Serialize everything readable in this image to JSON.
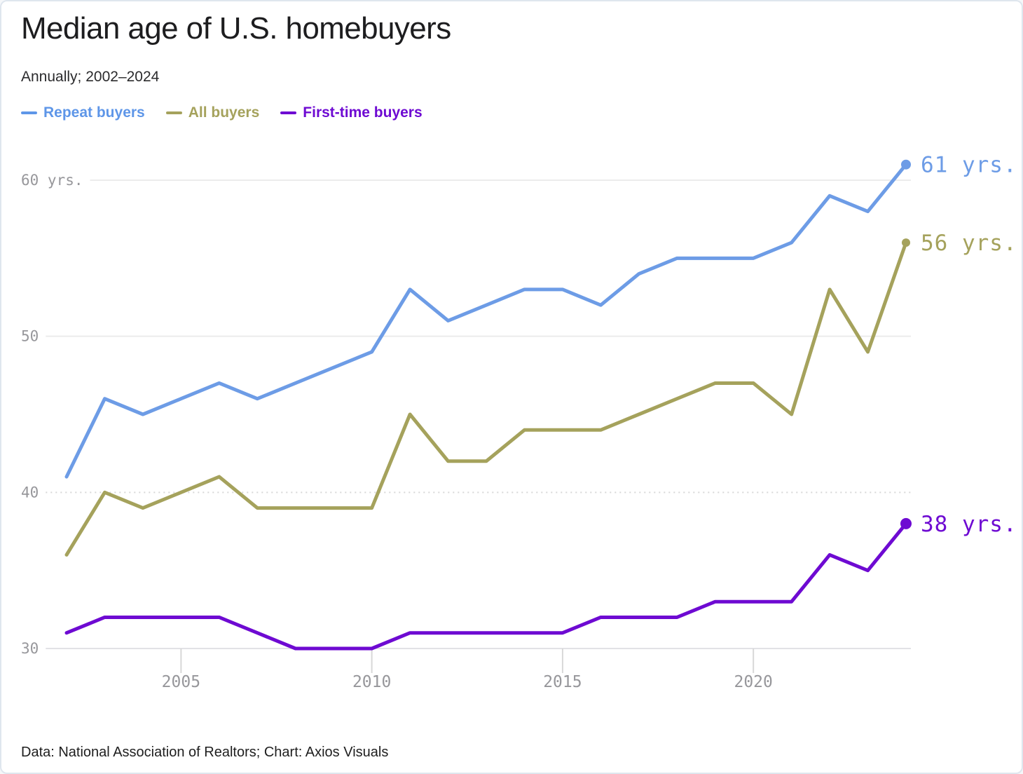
{
  "title": "Median age of U.S. homebuyers",
  "subtitle": "Annually; 2002–2024",
  "footer": "Data: National Association of Realtors; Chart: Axios Visuals",
  "legend": [
    {
      "label": "Repeat buyers",
      "color": "#5e96e8"
    },
    {
      "label": "All buyers",
      "color": "#a5a25c"
    },
    {
      "label": "First-time buyers",
      "color": "#6e0ad2"
    }
  ],
  "chart_data": {
    "type": "line",
    "title": "Median age of U.S. homebuyers",
    "subtitle": "Annually; 2002–2024",
    "xlabel": "",
    "ylabel": "yrs.",
    "x": [
      2002,
      2003,
      2004,
      2005,
      2006,
      2007,
      2008,
      2009,
      2010,
      2011,
      2012,
      2013,
      2014,
      2015,
      2016,
      2017,
      2018,
      2019,
      2020,
      2021,
      2022,
      2023,
      2024
    ],
    "series": [
      {
        "name": "Repeat buyers",
        "color": "#6d9ce6",
        "end_label": "61 yrs.",
        "values": [
          41,
          46,
          45,
          46,
          47,
          46,
          47,
          48,
          49,
          53,
          51,
          52,
          53,
          53,
          52,
          54,
          55,
          55,
          55,
          56,
          59,
          58,
          61
        ]
      },
      {
        "name": "All buyers",
        "color": "#a5a25c",
        "end_label": "56 yrs.",
        "values": [
          36,
          40,
          39,
          40,
          41,
          39,
          39,
          39,
          39,
          45,
          42,
          42,
          44,
          44,
          44,
          45,
          46,
          47,
          47,
          45,
          53,
          49,
          56
        ]
      },
      {
        "name": "First-time buyers",
        "color": "#6e0ad2",
        "end_label": "38 yrs.",
        "values": [
          31,
          32,
          32,
          32,
          32,
          31,
          30,
          30,
          30,
          31,
          31,
          31,
          31,
          31,
          32,
          32,
          32,
          33,
          33,
          33,
          36,
          35,
          38
        ]
      }
    ],
    "xticks": [
      2005,
      2010,
      2015,
      2020
    ],
    "yticks": [
      {
        "value": 30,
        "label": "30"
      },
      {
        "value": 40,
        "label": "40"
      },
      {
        "value": 50,
        "label": "50"
      },
      {
        "value": 60,
        "label": "60 yrs."
      }
    ],
    "ylim": [
      30,
      62
    ],
    "grid": "horizontal-light",
    "legend_position": "top-left",
    "axis_text_color": "#97979b"
  }
}
